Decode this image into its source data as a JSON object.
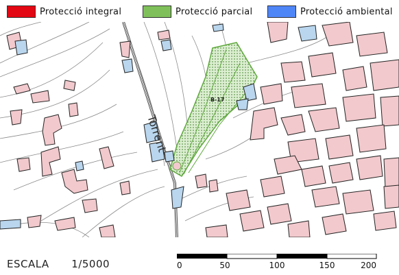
{
  "legend": {
    "items": [
      {
        "label": "Protecció integral",
        "color": "#e30613"
      },
      {
        "label": "Protecció parcial",
        "color": "#7fc05a"
      },
      {
        "label": "Protecció ambiental",
        "color": "#4f86f7"
      }
    ]
  },
  "map": {
    "road_label": "Torrent",
    "parcel_label": "B-17",
    "building_color": "#f2c9cd",
    "water_color": "#b9d6ee",
    "partial_hatch_color": "#5ea83c"
  },
  "scale": {
    "label": "ESCALA",
    "ratio": "1/5000",
    "ticks": [
      "0",
      "50",
      "100",
      "150",
      "200"
    ]
  }
}
